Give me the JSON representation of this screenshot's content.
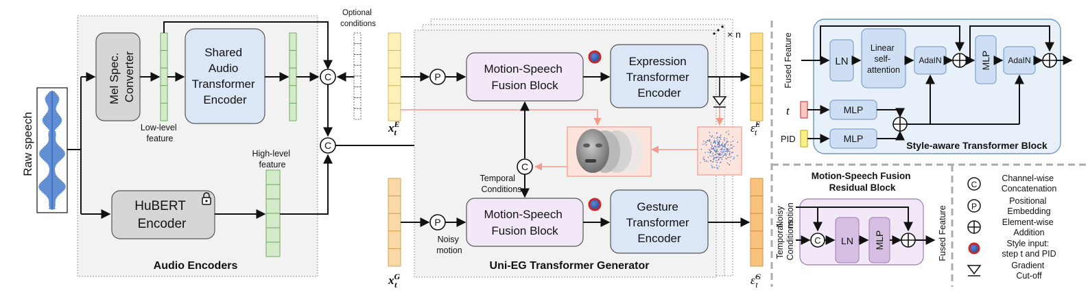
{
  "raw_speech": "Raw speech",
  "audio": {
    "mel": [
      "Mel Spec.",
      "Converter"
    ],
    "shared": [
      "Shared",
      "Audio",
      "Transformer",
      "Encoder"
    ],
    "hubert": [
      "HuBERT",
      "Encoder"
    ],
    "low_level": [
      "Low-level",
      "feature"
    ],
    "high_level": [
      "High-level",
      "feature"
    ],
    "optional": [
      "Optional",
      "conditions"
    ],
    "title": "Audio Encoders"
  },
  "generator": {
    "x_e": "x",
    "x_g": "x",
    "sub_t": "t",
    "sup_e": "E",
    "sup_g": "G",
    "msf_top": [
      "Motion-Speech",
      "Fusion Block"
    ],
    "msf_bottom": [
      "Motion-Speech",
      "Fusion Block"
    ],
    "expr": [
      "Expression",
      "Transformer",
      "Encoder"
    ],
    "gest": [
      "Gesture",
      "Transformer",
      "Encoder"
    ],
    "temporal": [
      "Temporal",
      "Conditions"
    ],
    "noisy": [
      "Noisy",
      "motion"
    ],
    "n_label": "× n",
    "title": "Uni-EG Transformer Generator",
    "out_e_hat": "ε̂",
    "out_g_hat": "ε̂"
  },
  "symbols": {
    "p": "P",
    "c": "C"
  },
  "style_block": {
    "fused": "Fused Feature",
    "ln": "LN",
    "linear": [
      "Linear",
      "self-",
      "attention"
    ],
    "adain1": "AdaIN",
    "mlp_v": "MLP",
    "adain2": "AdaIN",
    "t_label": "t",
    "pid_label": "PID",
    "mlp_t": "MLP",
    "mlp_pid": "MLP",
    "title": "Style-aware Transformer Block"
  },
  "residual_block": {
    "title": [
      "Motion-Speech Fusion",
      "Residual Block"
    ],
    "noisy": [
      "Noisy",
      "motion"
    ],
    "temporal": [
      "Temporal",
      "Conditions"
    ],
    "ln": "LN",
    "mlp": "MLP",
    "fused": "Fused Feature"
  },
  "legend": {
    "items": [
      {
        "symbol": "C",
        "text": [
          "Channel-wise",
          "Concatenation"
        ]
      },
      {
        "symbol": "P",
        "text": [
          "Positional",
          "Embedding"
        ]
      },
      {
        "symbol": "plus",
        "text": [
          "Element-wise",
          "Addition"
        ]
      },
      {
        "symbol": "style",
        "text": [
          "Style input:",
          "step t and PID"
        ]
      },
      {
        "symbol": "cutoff",
        "text": [
          "Gradient",
          "Cut-off"
        ]
      }
    ]
  },
  "colors": {
    "gray_box": "#d6d6d6",
    "blue_box": "#dbe7f7",
    "purple_box": "#f3e8f7",
    "green_feature": "#d3ebc9",
    "yellow_token": "#fdf0b8",
    "orange_token": "#fbd9a6",
    "red_arrow": "#f29a8c",
    "waveform": "#2f68c4"
  },
  "icons": {
    "lock": "lock-icon",
    "face": "face-render-icon",
    "noise": "noise-scatter-icon",
    "style": "style-input-icon",
    "cutoff": "gradient-cutoff-icon"
  }
}
